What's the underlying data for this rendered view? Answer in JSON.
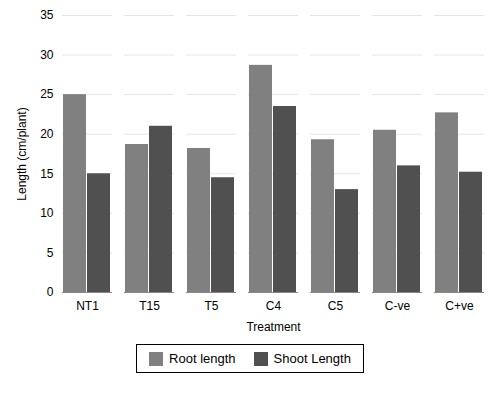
{
  "chart_data": {
    "type": "bar",
    "xlabel": "Treatment",
    "ylabel": "Length (cm/plant)",
    "categories": [
      "NT1",
      "T15",
      "T5",
      "C4",
      "C5",
      "C-ve",
      "C+ve"
    ],
    "series": [
      {
        "name": "Root length",
        "color": "#808080",
        "values": [
          25.0,
          18.7,
          18.2,
          28.7,
          19.3,
          20.5,
          22.7
        ]
      },
      {
        "name": "Shoot Length",
        "color": "#505050",
        "values": [
          15.0,
          21.0,
          14.5,
          23.5,
          13.0,
          16.0,
          15.2
        ]
      }
    ],
    "ylim": [
      0,
      35
    ],
    "yticks": [
      0,
      5,
      10,
      15,
      20,
      25,
      30,
      35
    ],
    "grid": true,
    "legend": "bottom"
  }
}
